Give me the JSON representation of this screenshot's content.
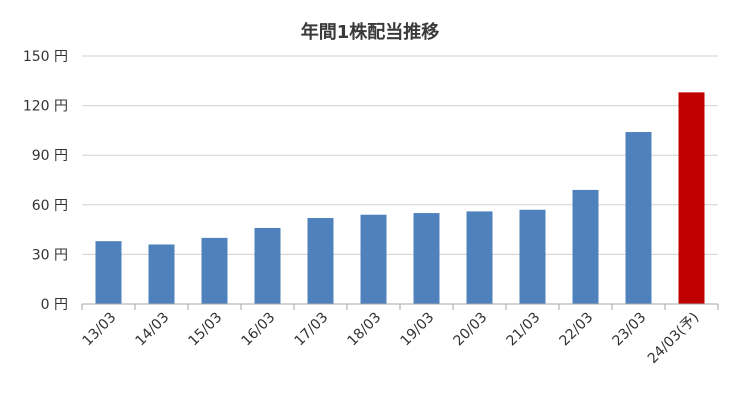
{
  "chart_data": {
    "type": "bar",
    "title": "年間1株配当推移",
    "xlabel": "",
    "ylabel": "",
    "categories": [
      "13/03",
      "14/03",
      "15/03",
      "16/03",
      "17/03",
      "18/03",
      "19/03",
      "20/03",
      "21/03",
      "22/03",
      "23/03",
      "24/03(予)"
    ],
    "values": [
      38,
      36,
      40,
      46,
      52,
      54,
      55,
      56,
      57,
      69,
      104,
      128
    ],
    "y_tick_labels": [
      "0 円",
      "30 円",
      "60 円",
      "90 円",
      "120 円",
      "150 円"
    ],
    "y_tick_values": [
      0,
      30,
      60,
      90,
      120,
      150
    ],
    "ylim": [
      0,
      150
    ],
    "grid": true,
    "legend": "none",
    "colors": {
      "bar": "#4f81bd",
      "forecast_bar": "#c00000",
      "grid": "#d0d0d0",
      "axis": "#a6a6a6"
    }
  }
}
